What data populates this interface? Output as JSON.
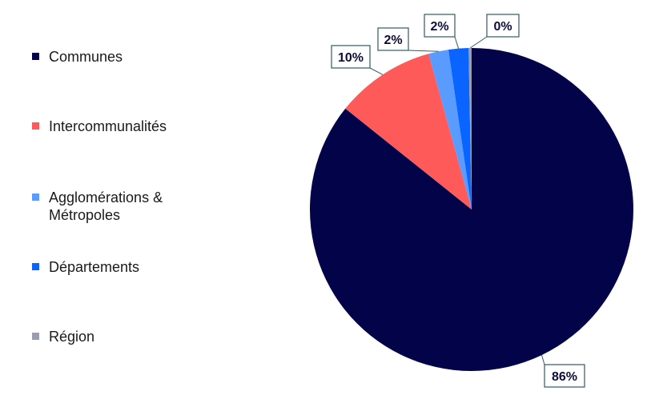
{
  "chart_data": {
    "type": "pie",
    "categories": [
      "Communes",
      "Intercommunalités",
      "Agglomérations & Métropoles",
      "Départements",
      "Région"
    ],
    "values": [
      86,
      10,
      2,
      2,
      0.3
    ],
    "data_labels": [
      "86%",
      "10%",
      "2%",
      "2%",
      "0%"
    ],
    "colors": [
      "#03034a",
      "#ff5a5a",
      "#5a9bff",
      "#0a64ff",
      "#9b9db3"
    ],
    "legend_position": "left"
  }
}
